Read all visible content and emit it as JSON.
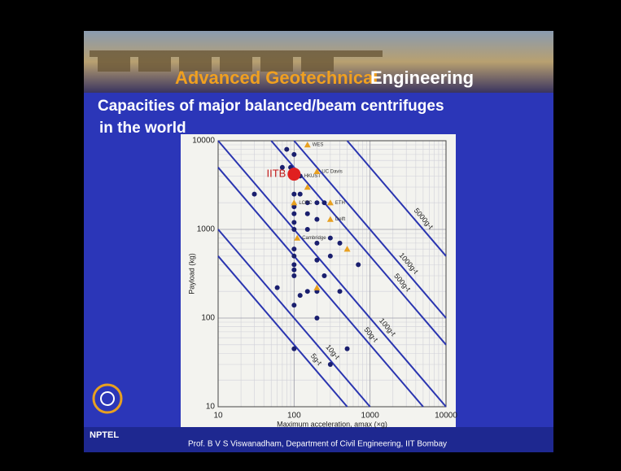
{
  "slide": {
    "title_part1": "Advanced Geotechnical",
    "title_part2": "Engineering",
    "subtitle_line1": "Capacities of major balanced/beam centrifuges",
    "subtitle_line2": "in the world",
    "logo_text": "NPTEL",
    "footer": "Prof. B V S Viswanadham, Department of Civil Engineering, IIT Bombay"
  },
  "chart_data": {
    "type": "scatter",
    "xlabel": "Maximum acceleration, amax (×g)",
    "ylabel": "Payload (kg)",
    "xscale": "log",
    "yscale": "log",
    "xlim": [
      10,
      10000
    ],
    "ylim": [
      10,
      10000
    ],
    "xticks": [
      10,
      100,
      1000,
      10000
    ],
    "yticks": [
      10,
      100,
      1000,
      10000
    ],
    "grid": true,
    "minor_grid": true,
    "capacity_lines": [
      {
        "value": 5000,
        "label": "5000g-t"
      },
      {
        "value": 1000,
        "label": "1000g-t"
      },
      {
        "value": 500,
        "label": "500g-t"
      },
      {
        "value": 100,
        "label": "100g-t"
      },
      {
        "value": 50,
        "label": "50g-t"
      },
      {
        "value": 10,
        "label": "10g-t"
      },
      {
        "value": 5,
        "label": "5g-t"
      }
    ],
    "capacity_line_color": "#2a35b0",
    "series": [
      {
        "marker": "circle",
        "color": "#1a1f6e",
        "size": 3,
        "x": [
          80,
          100,
          70,
          90,
          120,
          100,
          120,
          30,
          150,
          200,
          250,
          100,
          100,
          150,
          200,
          100,
          100,
          150,
          200,
          300,
          400,
          300,
          200,
          700,
          100,
          100,
          100,
          60,
          120,
          150,
          200,
          100,
          400,
          200,
          100,
          500,
          300,
          100,
          100,
          250
        ],
        "values": [
          8000,
          7000,
          5000,
          5000,
          4000,
          2500,
          2500,
          2500,
          2000,
          2000,
          2000,
          1800,
          1500,
          1500,
          1300,
          1200,
          1000,
          1000,
          700,
          800,
          700,
          500,
          450,
          400,
          400,
          350,
          300,
          220,
          180,
          200,
          200,
          140,
          200,
          100,
          45,
          45,
          30,
          600,
          500,
          300
        ],
        "labels": [
          null,
          null,
          null,
          null,
          "HKUST",
          null,
          null,
          null,
          null,
          null,
          null,
          null,
          null,
          null,
          null,
          null,
          null,
          null,
          null,
          null,
          null,
          null,
          null,
          null,
          null,
          null,
          null,
          null,
          null,
          null,
          null,
          null,
          null,
          null,
          null,
          null,
          null,
          null,
          null,
          null
        ]
      },
      {
        "marker": "triangle",
        "color": "#e8a020",
        "size": 4,
        "x": [
          150,
          200,
          150,
          300,
          300,
          100,
          110,
          500,
          200
        ],
        "values": [
          9000,
          4500,
          3000,
          2000,
          1300,
          2000,
          800,
          600,
          220
        ],
        "labels": [
          "WES",
          "UC Davis",
          null,
          "ETH",
          "Delft",
          "LCPC",
          "Cambridge",
          null,
          null
        ]
      },
      {
        "marker": "circle",
        "color": "#e02020",
        "size": 8,
        "x": [
          100
        ],
        "values": [
          4200
        ],
        "labels": [
          "IITB"
        ]
      }
    ]
  }
}
